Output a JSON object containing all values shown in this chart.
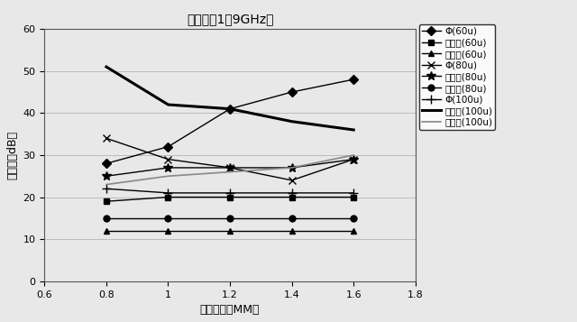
{
  "title": "方向性（1．9GHz）",
  "xlabel": "結合器長（MM）",
  "ylabel": "方向性（dB）",
  "x": [
    0.8,
    1.0,
    1.2,
    1.4,
    1.6
  ],
  "xlim": [
    0.6,
    1.8
  ],
  "ylim": [
    0,
    60
  ],
  "xticks": [
    0.6,
    0.8,
    1.0,
    1.2,
    1.4,
    1.6,
    1.8
  ],
  "xtick_labels": [
    "0.6",
    "0.8",
    "1",
    "1.2",
    "1.4",
    "1.6",
    "1.8"
  ],
  "yticks": [
    0,
    10,
    20,
    30,
    40,
    50,
    60
  ],
  "series": [
    {
      "label": "Φ(60u)",
      "values": [
        28,
        32,
        41,
        45,
        48
      ],
      "color": "#000000",
      "marker": "D",
      "linestyle": "-",
      "markersize": 5,
      "linewidth": 1.0
    },
    {
      "label": "ループ(60u)",
      "values": [
        19,
        20,
        20,
        20,
        20
      ],
      "color": "#000000",
      "marker": "s",
      "linestyle": "-",
      "markersize": 5,
      "linewidth": 1.0
    },
    {
      "label": "ライン(60u)",
      "values": [
        12,
        12,
        12,
        12,
        12
      ],
      "color": "#000000",
      "marker": "^",
      "linestyle": "-",
      "markersize": 5,
      "linewidth": 1.0
    },
    {
      "label": "Φ(80u)",
      "values": [
        34,
        29,
        27,
        24,
        29
      ],
      "color": "#000000",
      "marker": "x",
      "linestyle": "-",
      "markersize": 6,
      "linewidth": 1.0
    },
    {
      "label": "ループ(80u)",
      "values": [
        25,
        27,
        27,
        27,
        29
      ],
      "color": "#000000",
      "marker": "*",
      "linestyle": "-",
      "markersize": 7,
      "linewidth": 1.0
    },
    {
      "label": "ライン(80u)",
      "values": [
        15,
        15,
        15,
        15,
        15
      ],
      "color": "#000000",
      "marker": "o",
      "linestyle": "-",
      "markersize": 5,
      "linewidth": 1.0
    },
    {
      "label": "Φ(100u)",
      "values": [
        22,
        21,
        21,
        21,
        21
      ],
      "color": "#000000",
      "marker": "+",
      "linestyle": "-",
      "markersize": 7,
      "linewidth": 1.0
    },
    {
      "label": "ループ(100u)",
      "values": [
        51,
        42,
        41,
        38,
        36
      ],
      "color": "#000000",
      "marker": "None",
      "linestyle": "-",
      "markersize": 0,
      "linewidth": 2.2
    },
    {
      "label": "ライン(100u)",
      "values": [
        23,
        25,
        26,
        27,
        30
      ],
      "color": "#888888",
      "marker": "None",
      "linestyle": "-",
      "markersize": 0,
      "linewidth": 1.2
    }
  ]
}
